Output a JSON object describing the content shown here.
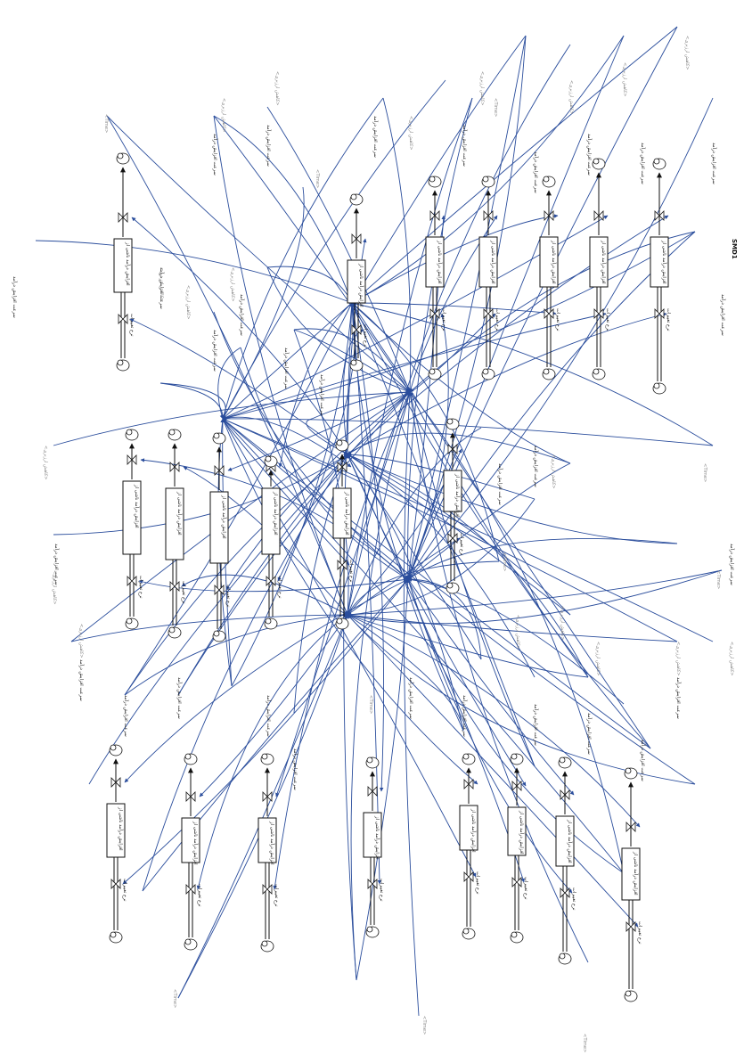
{
  "diagram": {
    "type": "stock-and-flow",
    "time_label": "<Time>",
    "title_text": "SMD1",
    "stock_label": "افزایش درآمد ناشی از",
    "flow_label": "نرخ تغییرات",
    "aux_label": "سرعت افزایش درآمد",
    "shadow_label": "<کاهش ارزبری>",
    "colors": {
      "link": "#2a4d9c",
      "stock": "#111111",
      "shadow": "#8a8a8a"
    }
  }
}
